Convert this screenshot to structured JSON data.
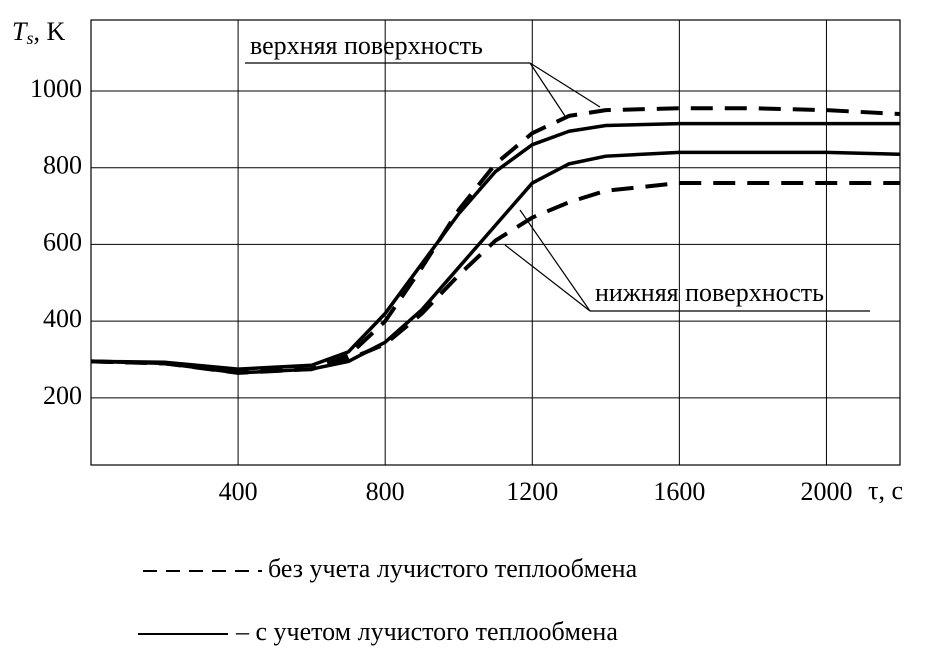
{
  "chart_data": {
    "type": "line",
    "ylabel": {
      "symbol": "T",
      "subscript": "s",
      "unit": ", K"
    },
    "xlabel": "τ, с",
    "x": [
      0,
      200,
      400,
      600,
      700,
      800,
      900,
      1000,
      1100,
      1200,
      1300,
      1400,
      1600,
      1800,
      2000,
      2200
    ],
    "series": [
      {
        "color": "#000000",
        "dashed": false,
        "values": [
          295,
          293,
          275,
          285,
          320,
          420,
          550,
          680,
          790,
          860,
          895,
          910,
          915,
          915,
          915,
          915
        ]
      },
      {
        "color": "#000000",
        "dashed": false,
        "values": [
          295,
          290,
          265,
          275,
          295,
          345,
          430,
          540,
          650,
          760,
          810,
          830,
          840,
          840,
          840,
          835
        ]
      },
      {
        "color": "#000000",
        "dashed": true,
        "values": [
          295,
          290,
          265,
          275,
          310,
          400,
          540,
          690,
          810,
          890,
          935,
          950,
          955,
          955,
          950,
          940
        ]
      },
      {
        "color": "#000000",
        "dashed": true,
        "values": [
          295,
          290,
          270,
          275,
          300,
          340,
          420,
          520,
          610,
          670,
          710,
          740,
          760,
          760,
          760,
          760
        ]
      }
    ],
    "annotations": [
      "верхняя поверхность",
      "нижняя поверхность"
    ],
    "legend": [
      {
        "label": "без учета лучистого теплообмена",
        "dashed": true
      },
      {
        "label": "– с учетом лучистого теплообмена",
        "dashed": false
      }
    ],
    "xlim": [
      0,
      2200
    ],
    "xticks": [
      400,
      800,
      1200,
      1600,
      2000
    ],
    "ylim": [
      25,
      1185
    ],
    "yticks": [
      200,
      400,
      600,
      800,
      1000
    ],
    "grid": true
  }
}
